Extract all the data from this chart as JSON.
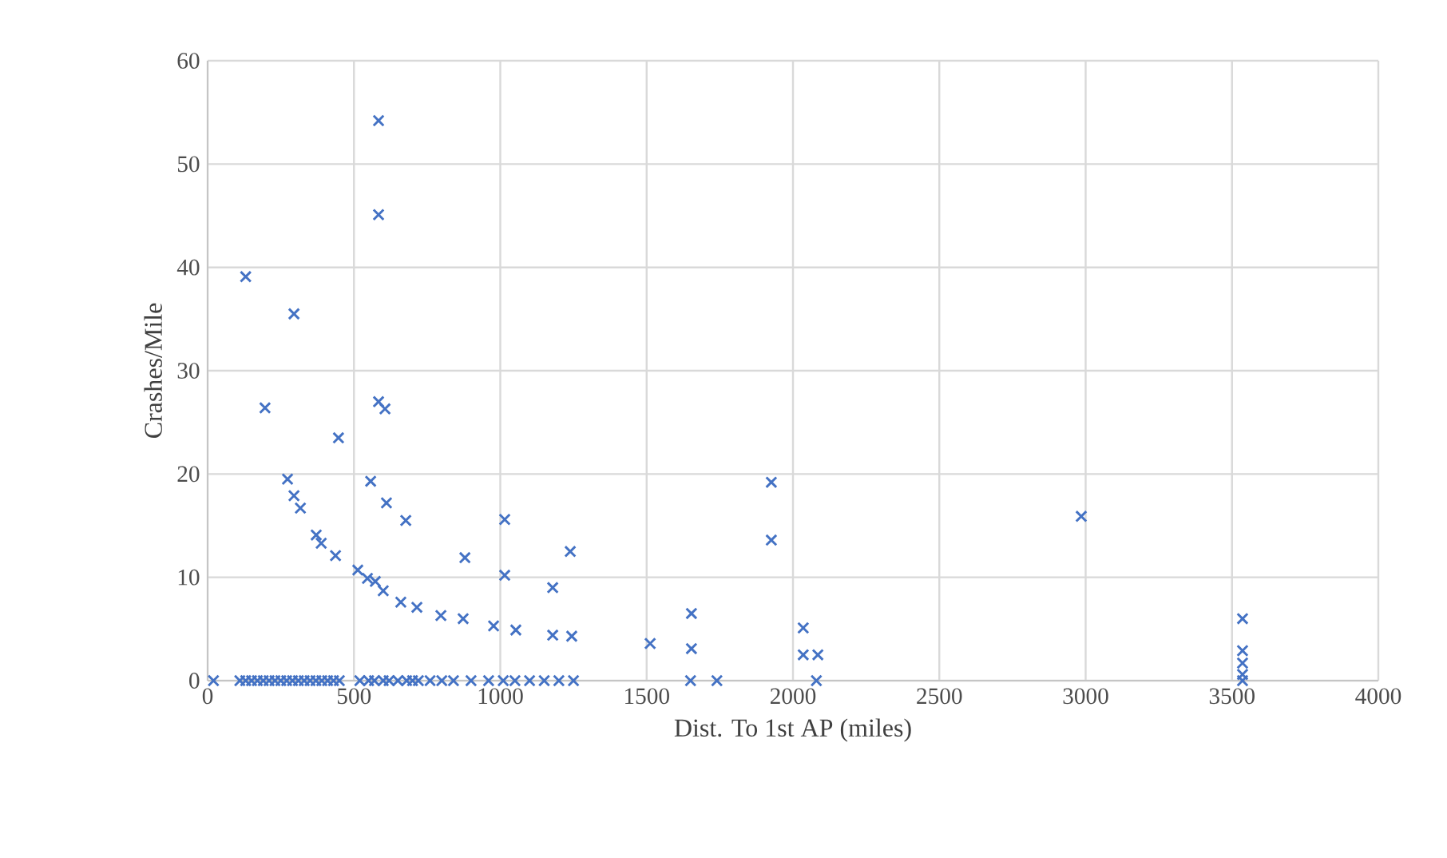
{
  "chart_data": {
    "type": "scatter",
    "xlabel": "Dist. To 1st AP (miles)",
    "ylabel": "Crashes/Mile",
    "xlim": [
      0,
      4000
    ],
    "xticks": [
      0,
      500,
      1000,
      1500,
      2000,
      2500,
      3000,
      3500,
      4000
    ],
    "ylim": [
      0,
      60
    ],
    "yticks": [
      0,
      10,
      20,
      30,
      40,
      50,
      60
    ],
    "grid": true,
    "marker": "cross",
    "series": [
      {
        "color": "#4472c4",
        "x": [
          130,
          295,
          584,
          584,
          196,
          584,
          606,
          447,
          273,
          295,
          317,
          557,
          611,
          677,
          371,
          388,
          437,
          513,
          546,
          573,
          600,
          660,
          715,
          797,
          873,
          977,
          1053,
          879,
          1015,
          1015,
          1179,
          1239,
          1179,
          1244,
          1512,
          1653,
          1653,
          1926,
          1926,
          2035,
          2035,
          2085,
          2985,
          3536,
          3536,
          3536,
          3536,
          20,
          110,
          130,
          150,
          170,
          190,
          210,
          230,
          250,
          270,
          290,
          310,
          330,
          350,
          370,
          390,
          410,
          430,
          450,
          520,
          550,
          570,
          600,
          620,
          650,
          680,
          700,
          720,
          760,
          800,
          840,
          900,
          960,
          1010,
          1050,
          1100,
          1150,
          1200,
          1250,
          1650,
          1740,
          2080,
          3536
        ],
        "values": [
          39.1,
          35.5,
          54.2,
          45.1,
          26.4,
          27,
          26.3,
          23.5,
          19.5,
          17.9,
          16.7,
          19.3,
          17.2,
          15.5,
          14.1,
          13.3,
          12.1,
          10.7,
          9.9,
          9.6,
          8.7,
          7.6,
          7.1,
          6.3,
          6.0,
          5.3,
          4.9,
          11.9,
          15.6,
          10.2,
          9.0,
          12.5,
          4.4,
          4.3,
          3.6,
          6.5,
          3.1,
          19.2,
          13.6,
          5.1,
          2.5,
          2.5,
          15.9,
          6.0,
          2.9,
          1.7,
          0.6,
          0,
          0,
          0,
          0,
          0,
          0,
          0,
          0,
          0,
          0,
          0,
          0,
          0,
          0,
          0,
          0,
          0,
          0,
          0,
          0,
          0,
          0,
          0,
          0,
          0,
          0,
          0,
          0,
          0,
          0,
          0,
          0,
          0,
          0,
          0,
          0,
          0,
          0,
          0,
          0,
          0,
          0,
          0
        ]
      }
    ]
  }
}
